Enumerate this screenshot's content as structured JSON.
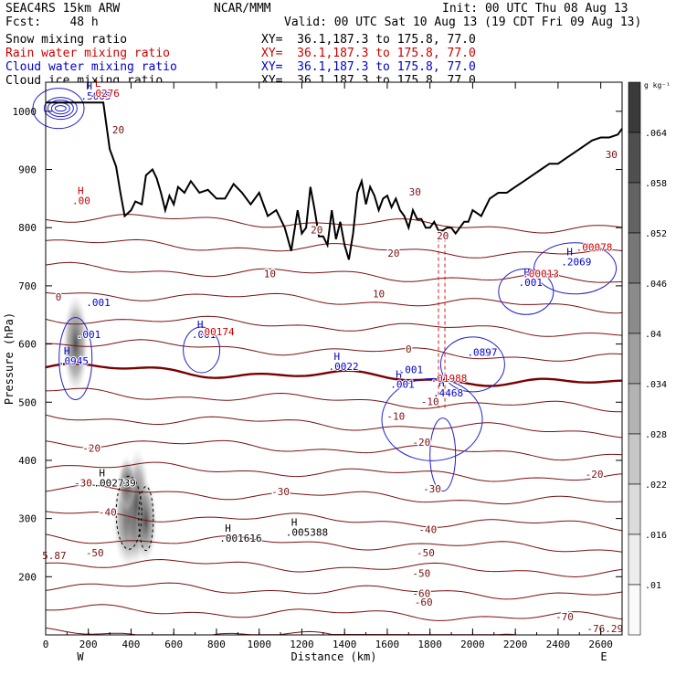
{
  "header": {
    "model": "SEAC4RS 15km ARW",
    "center": "NCAR/MMM",
    "init": "Init: 00 UTC Thu 08 Aug 13",
    "fcst": "Fcst:    48 h",
    "valid": "Valid: 00 UTC Sat 10 Aug 13 (19 CDT Fri 09 Aug 13)",
    "fields": [
      {
        "label": "Snow mixing ratio",
        "xy": "XY=  36.1,187.3 to 175.8, 77.0",
        "color": "#000000"
      },
      {
        "label": "Rain water mixing ratio",
        "xy": "XY=  36.1,187.3 to 175.8, 77.0",
        "color": "#cc0000"
      },
      {
        "label": "Cloud water mixing ratio",
        "xy": "XY=  36.1,187.3 to 175.8, 77.0",
        "color": "#0000cc"
      },
      {
        "label": "Cloud ice mixing ratio",
        "xy": "XY=  36.1,187.3 to 175.8, 77.0",
        "color": "#000000"
      }
    ]
  },
  "chart_data": {
    "type": "contour cross-section",
    "xlabel": "Distance (km)",
    "ylabel": "Pressure (hPa)",
    "xlim": [
      0,
      2700
    ],
    "ylim": [
      1050,
      100
    ],
    "x_ticks": [
      "0",
      "200",
      "400",
      "600",
      "800",
      "1000",
      "1200",
      "1400",
      "1600",
      "1800",
      "2000",
      "2200",
      "2400",
      "2600"
    ],
    "y_ticks": [
      "200",
      "300",
      "400",
      "500",
      "600",
      "700",
      "800",
      "900",
      "1000"
    ],
    "x_end_labels": {
      "left": "W",
      "right": "E"
    },
    "colorbar": {
      "unit": "g kg⁻¹",
      "labels": [
        ".064",
        ".058",
        ".052",
        ".046",
        ".04",
        ".034",
        ".028",
        ".022",
        ".016",
        ".01"
      ],
      "colors": [
        "#3a3a3a",
        "#4f4f4f",
        "#636363",
        "#777777",
        "#8b8b8b",
        "#9f9f9f",
        "#b3b3b3",
        "#c7c7c7",
        "#dbdbdb",
        "#ededed",
        "#fafafa"
      ]
    },
    "temperature_contours": {
      "color": "#7a1010",
      "zero_color": "#7a0000",
      "levels": [
        -70,
        -60,
        -50,
        -40,
        -30,
        -20,
        -10,
        0,
        10,
        20,
        30
      ],
      "labels": [
        {
          "text": "-76.29",
          "x": 2620,
          "p": 105
        },
        {
          "text": "-70",
          "x": 2430,
          "p": 125
        },
        {
          "text": "-60",
          "x": 1770,
          "p": 150
        },
        {
          "text": "-60",
          "x": 1760,
          "p": 165
        },
        {
          "text": "-50",
          "x": 230,
          "p": 235
        },
        {
          "text": "-50",
          "x": 1760,
          "p": 200
        },
        {
          "text": "-50",
          "x": 1780,
          "p": 235
        },
        {
          "text": "-40",
          "x": 290,
          "p": 305
        },
        {
          "text": "-40",
          "x": 1790,
          "p": 275
        },
        {
          "text": "-30",
          "x": 175,
          "p": 355
        },
        {
          "text": "-30",
          "x": 1100,
          "p": 340
        },
        {
          "text": "-30",
          "x": 1810,
          "p": 345
        },
        {
          "text": "-20",
          "x": 215,
          "p": 415
        },
        {
          "text": "-20",
          "x": 2570,
          "p": 370
        },
        {
          "text": "-20",
          "x": 1760,
          "p": 425
        },
        {
          "text": "-10",
          "x": 1640,
          "p": 470
        },
        {
          "text": "-10",
          "x": 1800,
          "p": 495
        },
        {
          "text": "0",
          "x": 60,
          "p": 675
        },
        {
          "text": "0",
          "x": 1700,
          "p": 585
        },
        {
          "text": "0",
          "x": 2060,
          "p": 580
        },
        {
          "text": "10",
          "x": 1560,
          "p": 680
        },
        {
          "text": "10",
          "x": 1050,
          "p": 715
        },
        {
          "text": "20",
          "x": 1630,
          "p": 750
        },
        {
          "text": "20",
          "x": 1860,
          "p": 780
        },
        {
          "text": "20",
          "x": 1270,
          "p": 790
        },
        {
          "text": "20",
          "x": 340,
          "p": 962
        },
        {
          "text": "30",
          "x": 1730,
          "p": 855
        },
        {
          "text": "30",
          "x": 2650,
          "p": 920
        },
        {
          "text": "5.87",
          "x": 40,
          "p": 230
        }
      ]
    },
    "maxima_labels": [
      {
        "mark": "H",
        "value": ".001616",
        "x": 840,
        "p": 260,
        "color": "#000000"
      },
      {
        "mark": "H",
        "value": ".005388",
        "x": 1150,
        "p": 270,
        "color": "#000000"
      },
      {
        "mark": "H",
        "value": ".002739",
        "x": 250,
        "p": 355,
        "color": "#000000"
      },
      {
        "mark": "H",
        "value": ".0945",
        "x": 85,
        "p": 565,
        "color": "#0000cc"
      },
      {
        "mark": "",
        "value": ".001",
        "x": 170,
        "p": 610,
        "color": "#0000cc"
      },
      {
        "mark": "",
        "value": ".001",
        "x": 215,
        "p": 665,
        "color": "#0000cc"
      },
      {
        "mark": "H",
        "value": ".0022",
        "x": 1350,
        "p": 555,
        "color": "#0000cc"
      },
      {
        "mark": "H",
        "value": ".001",
        "x": 1640,
        "p": 525,
        "color": "#0000cc"
      },
      {
        "mark": "",
        "value": ".001",
        "x": 1680,
        "p": 550,
        "color": "#0000cc"
      },
      {
        "mark": "H",
        "value": ".4468",
        "x": 1840,
        "p": 510,
        "color": "#0000cc"
      },
      {
        "mark": "",
        "value": ".01988",
        "x": 1830,
        "p": 535,
        "color": "#cc0000"
      },
      {
        "mark": "",
        "value": ".0897",
        "x": 2000,
        "p": 580,
        "color": "#0000cc"
      },
      {
        "mark": "H",
        "value": ".001",
        "x": 710,
        "p": 610,
        "color": "#0000cc"
      },
      {
        "mark": "",
        "value": ".00174",
        "x": 740,
        "p": 615,
        "color": "#cc0000"
      },
      {
        "mark": "H",
        "value": ".001",
        "x": 2240,
        "p": 700,
        "color": "#0000cc"
      },
      {
        "mark": "",
        "value": ".00013",
        "x": 2260,
        "p": 715,
        "color": "#cc0000"
      },
      {
        "mark": "H",
        "value": ".2069",
        "x": 2440,
        "p": 735,
        "color": "#0000cc"
      },
      {
        "mark": "",
        "value": ".00078",
        "x": 2510,
        "p": 760,
        "color": "#cc0000"
      },
      {
        "mark": "H",
        "value": ".00",
        "x": 150,
        "p": 840,
        "color": "#cc0000"
      },
      {
        "mark": "H",
        "value": ".5005",
        "x": 190,
        "p": 1020,
        "color": "#0000cc"
      },
      {
        "mark": "L",
        "value": ".0276",
        "x": 230,
        "p": 1025,
        "color": "#cc0000"
      }
    ],
    "terrain": {
      "color": "#000000",
      "x": [
        0,
        270,
        300,
        330,
        350,
        370,
        400,
        420,
        450,
        470,
        500,
        520,
        540,
        560,
        580,
        600,
        620,
        650,
        680,
        720,
        760,
        800,
        840,
        880,
        920,
        960,
        1000,
        1040,
        1080,
        1120,
        1150,
        1180,
        1200,
        1220,
        1240,
        1260,
        1280,
        1300,
        1320,
        1340,
        1360,
        1380,
        1400,
        1420,
        1440,
        1460,
        1480,
        1500,
        1520,
        1540,
        1560,
        1580,
        1600,
        1620,
        1640,
        1660,
        1680,
        1700,
        1720,
        1740,
        1760,
        1780,
        1800,
        1820,
        1840,
        1860,
        1880,
        1900,
        1920,
        1940,
        1960,
        1980,
        2000,
        2040,
        2080,
        2120,
        2160,
        2200,
        2240,
        2280,
        2320,
        2360,
        2400,
        2440,
        2480,
        2520,
        2560,
        2600,
        2640,
        2680,
        2700
      ],
      "p": [
        1015,
        1015,
        935,
        905,
        860,
        820,
        830,
        845,
        840,
        890,
        900,
        885,
        860,
        830,
        855,
        840,
        870,
        860,
        880,
        860,
        865,
        850,
        850,
        875,
        860,
        840,
        860,
        820,
        830,
        800,
        760,
        830,
        790,
        800,
        870,
        830,
        785,
        785,
        770,
        830,
        780,
        810,
        770,
        745,
        790,
        860,
        880,
        840,
        870,
        855,
        830,
        850,
        855,
        835,
        850,
        830,
        820,
        800,
        830,
        815,
        815,
        800,
        800,
        810,
        795,
        795,
        800,
        800,
        790,
        800,
        810,
        810,
        830,
        820,
        850,
        860,
        860,
        870,
        880,
        890,
        900,
        910,
        910,
        920,
        930,
        940,
        950,
        955,
        955,
        960,
        970
      ]
    }
  }
}
